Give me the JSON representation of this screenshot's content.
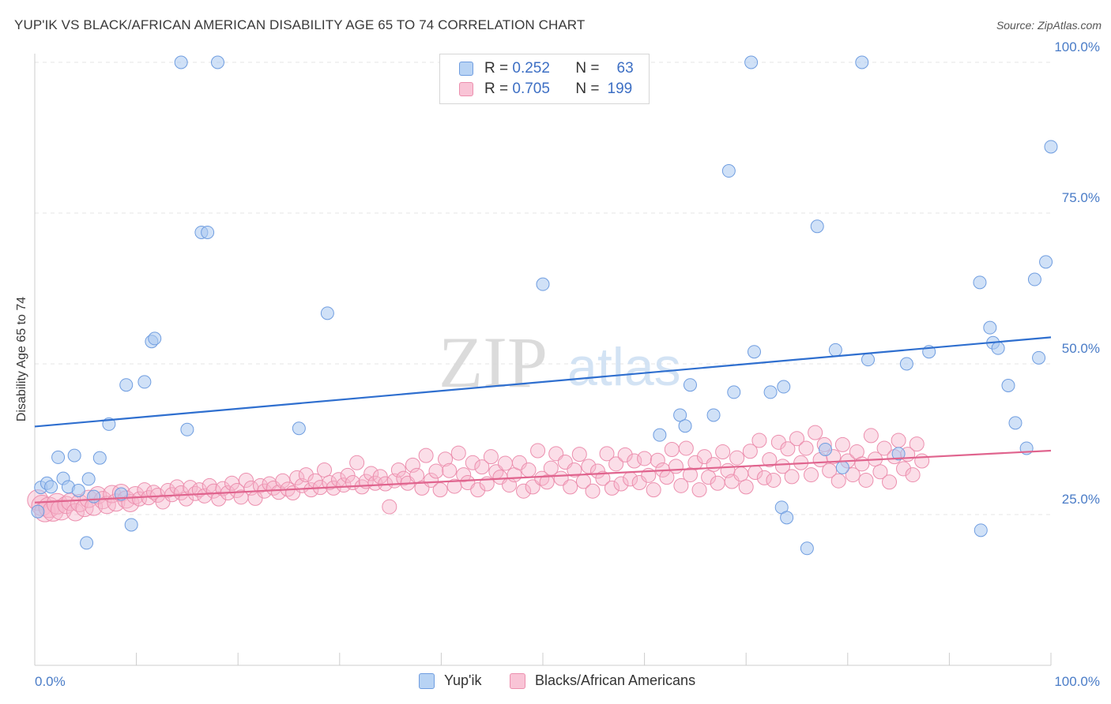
{
  "header": {
    "title": "YUP'IK VS BLACK/AFRICAN AMERICAN DISABILITY AGE 65 TO 74 CORRELATION CHART",
    "source": "Source: ZipAtlas.com"
  },
  "watermark": {
    "zip": "ZIP",
    "atlas": "atlas"
  },
  "legend": {
    "rows": [
      {
        "r_label": "R =",
        "r_value": "0.252",
        "n_label": "N =",
        "n_value": "63"
      },
      {
        "r_label": "R =",
        "r_value": "0.705",
        "n_label": "N =",
        "n_value": "199"
      }
    ]
  },
  "bottom_legend": {
    "items": [
      "Yup'ik",
      "Blacks/African Americans"
    ]
  },
  "chart_data": {
    "type": "scatter",
    "title": "YUP'IK VS BLACK/AFRICAN AMERICAN DISABILITY AGE 65 TO 74 CORRELATION CHART",
    "ylabel": "Disability Age 65 to 74",
    "xlabel": "",
    "x_tick_labels": [
      "0.0%",
      "100.0%"
    ],
    "y_tick_labels": [
      "25.0%",
      "50.0%",
      "75.0%",
      "100.0%"
    ],
    "xlim": [
      0,
      100
    ],
    "ylim": [
      0,
      100
    ],
    "grid": true,
    "legend_position": "top-center",
    "colors": {
      "yupik_fill": "#a9c8f0",
      "yupik_stroke": "#6f9de0",
      "yupik_line": "#2f6fcf",
      "black_fill": "#f7b6cb",
      "black_stroke": "#ec8fae",
      "black_line": "#e0648e"
    },
    "series": [
      {
        "name": "Yup'ik",
        "trend": {
          "x": [
            0,
            100
          ],
          "y": [
            39.6,
            54.4
          ]
        },
        "points": [
          [
            0.3,
            25.5
          ],
          [
            0.6,
            29.5
          ],
          [
            1.2,
            30.2
          ],
          [
            1.6,
            29.6
          ],
          [
            2.3,
            34.5
          ],
          [
            2.8,
            31.0
          ],
          [
            3.3,
            29.6
          ],
          [
            3.9,
            34.8
          ],
          [
            4.3,
            29.0
          ],
          [
            5.1,
            20.3
          ],
          [
            5.3,
            30.9
          ],
          [
            5.8,
            28.0
          ],
          [
            6.4,
            34.4
          ],
          [
            7.3,
            40.0
          ],
          [
            8.5,
            28.4
          ],
          [
            9.0,
            46.5
          ],
          [
            9.5,
            23.3
          ],
          [
            10.8,
            47.0
          ],
          [
            11.5,
            53.7
          ],
          [
            11.8,
            54.2
          ],
          [
            14.4,
            100.0
          ],
          [
            15.0,
            39.1
          ],
          [
            16.4,
            71.8
          ],
          [
            17.0,
            71.8
          ],
          [
            18.0,
            100.0
          ],
          [
            26.0,
            39.3
          ],
          [
            28.8,
            58.4
          ],
          [
            50.0,
            63.2
          ],
          [
            61.5,
            38.2
          ],
          [
            63.5,
            41.5
          ],
          [
            64.0,
            39.7
          ],
          [
            64.5,
            46.5
          ],
          [
            66.8,
            41.5
          ],
          [
            68.3,
            82.0
          ],
          [
            68.8,
            45.3
          ],
          [
            70.5,
            100.0
          ],
          [
            70.8,
            52.0
          ],
          [
            72.4,
            45.3
          ],
          [
            73.5,
            26.2
          ],
          [
            73.7,
            46.2
          ],
          [
            74.0,
            24.5
          ],
          [
            76.0,
            19.4
          ],
          [
            77.0,
            72.8
          ],
          [
            77.8,
            35.8
          ],
          [
            78.8,
            52.3
          ],
          [
            79.5,
            32.8
          ],
          [
            81.4,
            100.0
          ],
          [
            82.0,
            50.7
          ],
          [
            85.0,
            35.1
          ],
          [
            85.8,
            50.0
          ],
          [
            88.0,
            52.0
          ],
          [
            93.0,
            63.5
          ],
          [
            93.1,
            22.4
          ],
          [
            94.0,
            56.0
          ],
          [
            94.3,
            53.5
          ],
          [
            94.8,
            52.6
          ],
          [
            95.8,
            46.4
          ],
          [
            96.5,
            40.2
          ],
          [
            97.6,
            36.0
          ],
          [
            98.4,
            64.0
          ],
          [
            98.8,
            51.0
          ],
          [
            99.5,
            66.9
          ],
          [
            100.0,
            86.0
          ]
        ]
      },
      {
        "name": "Blacks/African Americans",
        "trend": {
          "x": [
            0,
            100
          ],
          "y": [
            27.0,
            35.6
          ]
        },
        "points": [
          [
            0.3,
            27.4
          ],
          [
            0.7,
            26.5
          ],
          [
            1.0,
            25.5
          ],
          [
            1.4,
            26.2
          ],
          [
            1.8,
            25.6
          ],
          [
            2.2,
            26.8
          ],
          [
            2.6,
            25.8
          ],
          [
            3.1,
            26.6
          ],
          [
            3.5,
            27.1
          ],
          [
            4.0,
            25.4
          ],
          [
            4.4,
            26.9
          ],
          [
            4.9,
            26.1
          ],
          [
            5.3,
            27.6
          ],
          [
            5.8,
            26.3
          ],
          [
            6.2,
            28.2
          ],
          [
            6.7,
            27.4
          ],
          [
            7.1,
            26.6
          ],
          [
            7.6,
            28.4
          ],
          [
            8.0,
            27.0
          ],
          [
            8.5,
            28.6
          ],
          [
            9.0,
            27.5
          ],
          [
            9.4,
            26.9
          ],
          [
            9.9,
            28.2
          ],
          [
            10.3,
            27.6
          ],
          [
            10.8,
            29.1
          ],
          [
            11.2,
            27.8
          ],
          [
            11.7,
            28.7
          ],
          [
            12.1,
            28.2
          ],
          [
            12.6,
            27.1
          ],
          [
            13.1,
            29.0
          ],
          [
            13.5,
            28.3
          ],
          [
            14.0,
            29.6
          ],
          [
            14.4,
            28.6
          ],
          [
            14.9,
            27.6
          ],
          [
            15.3,
            29.5
          ],
          [
            15.8,
            28.5
          ],
          [
            16.2,
            29.1
          ],
          [
            16.7,
            28.1
          ],
          [
            17.2,
            29.8
          ],
          [
            17.6,
            28.9
          ],
          [
            18.1,
            27.6
          ],
          [
            18.5,
            29.3
          ],
          [
            19.0,
            28.6
          ],
          [
            19.4,
            30.2
          ],
          [
            19.9,
            29.0
          ],
          [
            20.3,
            27.9
          ],
          [
            20.8,
            30.7
          ],
          [
            21.3,
            29.4
          ],
          [
            21.7,
            27.7
          ],
          [
            22.2,
            29.8
          ],
          [
            22.6,
            28.9
          ],
          [
            23.1,
            30.1
          ],
          [
            23.5,
            29.4
          ],
          [
            24.0,
            28.7
          ],
          [
            24.4,
            30.6
          ],
          [
            24.9,
            29.2
          ],
          [
            25.4,
            28.6
          ],
          [
            25.8,
            31.1
          ],
          [
            26.3,
            29.8
          ],
          [
            26.7,
            31.6
          ],
          [
            27.2,
            29.1
          ],
          [
            27.6,
            30.6
          ],
          [
            28.1,
            29.5
          ],
          [
            28.5,
            32.4
          ],
          [
            29.0,
            30.3
          ],
          [
            29.4,
            29.4
          ],
          [
            29.9,
            30.8
          ],
          [
            30.4,
            29.9
          ],
          [
            30.8,
            31.5
          ],
          [
            31.3,
            30.3
          ],
          [
            31.7,
            33.6
          ],
          [
            32.2,
            29.6
          ],
          [
            32.6,
            30.5
          ],
          [
            33.1,
            31.8
          ],
          [
            33.5,
            30.2
          ],
          [
            34.0,
            31.3
          ],
          [
            34.5,
            30.1
          ],
          [
            34.9,
            26.3
          ],
          [
            35.4,
            30.6
          ],
          [
            35.8,
            32.4
          ],
          [
            36.3,
            31.0
          ],
          [
            36.7,
            30.2
          ],
          [
            37.2,
            33.2
          ],
          [
            37.6,
            31.5
          ],
          [
            38.1,
            29.4
          ],
          [
            38.5,
            34.8
          ],
          [
            39.0,
            30.7
          ],
          [
            39.5,
            32.2
          ],
          [
            39.9,
            29.1
          ],
          [
            40.4,
            34.2
          ],
          [
            40.8,
            32.3
          ],
          [
            41.3,
            29.7
          ],
          [
            41.7,
            35.2
          ],
          [
            42.2,
            31.6
          ],
          [
            42.6,
            30.3
          ],
          [
            43.1,
            33.6
          ],
          [
            43.6,
            29.1
          ],
          [
            44.0,
            32.9
          ],
          [
            44.5,
            30.1
          ],
          [
            44.9,
            34.6
          ],
          [
            45.4,
            32.1
          ],
          [
            45.8,
            31.2
          ],
          [
            46.3,
            33.5
          ],
          [
            46.7,
            29.9
          ],
          [
            47.2,
            31.6
          ],
          [
            47.7,
            33.6
          ],
          [
            48.1,
            28.9
          ],
          [
            48.6,
            32.4
          ],
          [
            49.0,
            29.6
          ],
          [
            49.5,
            35.6
          ],
          [
            49.9,
            31.0
          ],
          [
            50.4,
            30.4
          ],
          [
            50.8,
            32.7
          ],
          [
            51.3,
            35.1
          ],
          [
            51.8,
            31.0
          ],
          [
            52.2,
            33.7
          ],
          [
            52.7,
            29.6
          ],
          [
            53.1,
            32.4
          ],
          [
            53.6,
            35.0
          ],
          [
            54.0,
            30.5
          ],
          [
            54.5,
            33.0
          ],
          [
            54.9,
            28.9
          ],
          [
            55.4,
            32.2
          ],
          [
            55.9,
            31.0
          ],
          [
            56.3,
            35.1
          ],
          [
            56.8,
            29.4
          ],
          [
            57.2,
            33.4
          ],
          [
            57.7,
            30.1
          ],
          [
            58.1,
            34.9
          ],
          [
            58.6,
            30.9
          ],
          [
            59.0,
            33.9
          ],
          [
            59.5,
            30.3
          ],
          [
            60.0,
            34.3
          ],
          [
            60.4,
            31.5
          ],
          [
            60.9,
            29.1
          ],
          [
            61.3,
            34.0
          ],
          [
            61.8,
            32.4
          ],
          [
            62.2,
            31.2
          ],
          [
            62.7,
            35.8
          ],
          [
            63.1,
            33.0
          ],
          [
            63.6,
            29.8
          ],
          [
            64.1,
            36.0
          ],
          [
            64.5,
            31.6
          ],
          [
            65.0,
            33.6
          ],
          [
            65.4,
            29.1
          ],
          [
            65.9,
            34.6
          ],
          [
            66.3,
            31.2
          ],
          [
            66.8,
            33.3
          ],
          [
            67.2,
            30.2
          ],
          [
            67.7,
            35.4
          ],
          [
            68.2,
            32.3
          ],
          [
            68.6,
            30.5
          ],
          [
            69.1,
            34.4
          ],
          [
            69.5,
            31.7
          ],
          [
            70.0,
            29.6
          ],
          [
            70.4,
            35.5
          ],
          [
            70.9,
            32.0
          ],
          [
            71.3,
            37.3
          ],
          [
            71.8,
            31.1
          ],
          [
            72.3,
            34.1
          ],
          [
            72.7,
            30.7
          ],
          [
            73.2,
            37.0
          ],
          [
            73.6,
            33.0
          ],
          [
            74.1,
            35.9
          ],
          [
            74.5,
            31.3
          ],
          [
            75.0,
            37.6
          ],
          [
            75.4,
            33.6
          ],
          [
            75.9,
            36.0
          ],
          [
            76.4,
            31.6
          ],
          [
            76.8,
            38.6
          ],
          [
            77.3,
            34.1
          ],
          [
            77.7,
            36.6
          ],
          [
            78.2,
            32.3
          ],
          [
            78.6,
            34.6
          ],
          [
            79.1,
            30.6
          ],
          [
            79.5,
            36.6
          ],
          [
            80.0,
            33.9
          ],
          [
            80.5,
            31.6
          ],
          [
            80.9,
            35.4
          ],
          [
            81.4,
            33.4
          ],
          [
            81.8,
            30.7
          ],
          [
            82.3,
            38.1
          ],
          [
            82.7,
            34.2
          ],
          [
            83.2,
            32.1
          ],
          [
            83.6,
            36.0
          ],
          [
            84.1,
            30.4
          ],
          [
            84.6,
            34.6
          ],
          [
            85.0,
            37.3
          ],
          [
            85.5,
            32.6
          ],
          [
            85.9,
            35.0
          ],
          [
            86.4,
            31.6
          ],
          [
            86.8,
            36.7
          ],
          [
            87.3,
            33.9
          ]
        ]
      }
    ]
  }
}
